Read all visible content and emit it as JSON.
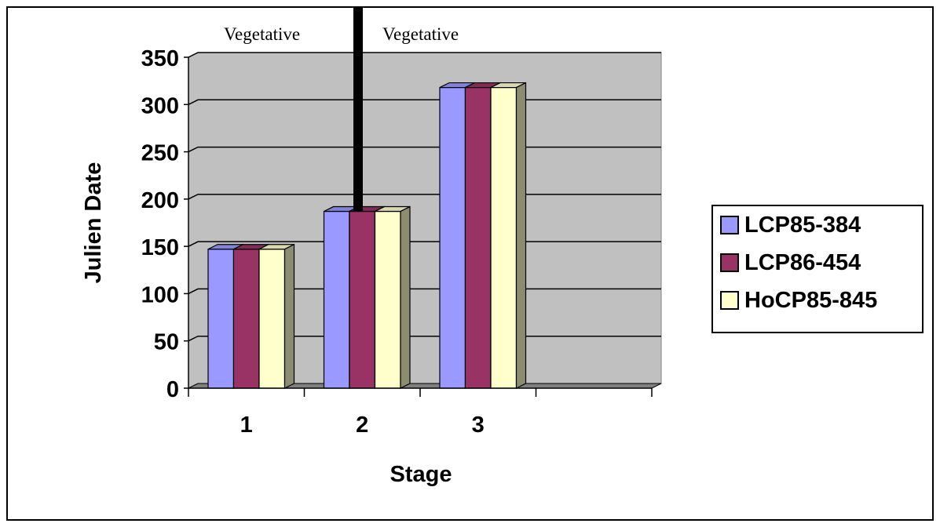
{
  "chart_data": {
    "type": "bar",
    "style": "3d-clustered-column",
    "categories": [
      "1",
      "2",
      "3",
      ""
    ],
    "series": [
      {
        "name": "LCP85-384",
        "color": "#9999ff",
        "values": [
          147,
          187,
          318,
          null
        ]
      },
      {
        "name": "LCP86-454",
        "color": "#993366",
        "values": [
          147,
          187,
          318,
          null
        ]
      },
      {
        "name": "HoCP85-845",
        "color": "#ffffcc",
        "values": [
          147,
          187,
          318,
          null
        ]
      }
    ],
    "title": "",
    "xlabel": "Stage",
    "ylabel": "Julien Date",
    "ylim": [
      0,
      350
    ],
    "yticks": [
      0,
      50,
      100,
      150,
      200,
      250,
      300,
      350
    ],
    "grid": true,
    "legend_position": "right",
    "annotations": [
      "Vegetative",
      "Vegetative"
    ],
    "colors": {
      "wall": "#c0c0c0",
      "floor": "#808080",
      "marker_line": "#000000"
    }
  }
}
